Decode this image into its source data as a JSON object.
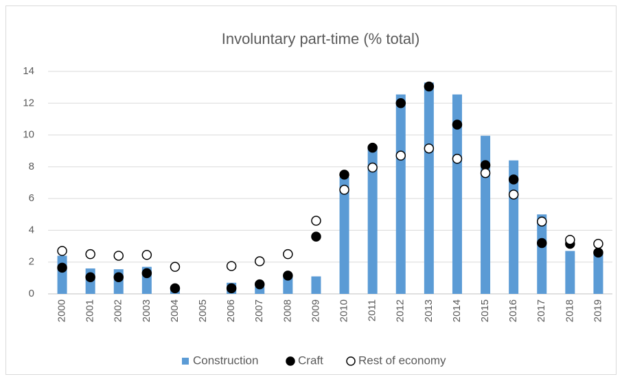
{
  "chart_data": {
    "type": "bar",
    "title": "Involuntary part-time (% total)",
    "categories": [
      "2000",
      "2001",
      "2002",
      "2003",
      "2004",
      "2005",
      "2006",
      "2007",
      "2008",
      "2009",
      "2010",
      "2011",
      "2012",
      "2013",
      "2014",
      "2015",
      "2016",
      "2017",
      "2018",
      "2019"
    ],
    "series": [
      {
        "name": "Construction",
        "type": "bar",
        "color": "#5b9bd5",
        "values": [
          2.4,
          1.6,
          1.55,
          1.7,
          0.4,
          null,
          0.7,
          0.45,
          1.1,
          1.1,
          7.35,
          9.3,
          12.55,
          13.3,
          12.55,
          9.95,
          8.4,
          5.0,
          2.7,
          2.6
        ]
      },
      {
        "name": "Craft",
        "type": "scatter",
        "color": "#000000",
        "edgecolor": "#000000",
        "values": [
          1.65,
          1.05,
          1.05,
          1.3,
          0.35,
          null,
          0.35,
          0.6,
          1.15,
          3.6,
          7.5,
          9.2,
          12.0,
          13.05,
          10.65,
          8.1,
          7.2,
          3.2,
          3.15,
          2.6
        ]
      },
      {
        "name": "Rest of economy",
        "type": "scatter",
        "color": "#ffffff",
        "edgecolor": "#000000",
        "values": [
          2.7,
          2.5,
          2.4,
          2.45,
          1.7,
          null,
          1.75,
          2.05,
          2.5,
          4.6,
          6.55,
          7.95,
          8.7,
          9.15,
          8.5,
          7.6,
          6.25,
          4.55,
          3.4,
          3.15
        ]
      }
    ],
    "ylim": [
      0,
      14
    ],
    "yticks": [
      0,
      2,
      4,
      6,
      8,
      10,
      12,
      14
    ],
    "grid": true,
    "legend": "bottom"
  }
}
